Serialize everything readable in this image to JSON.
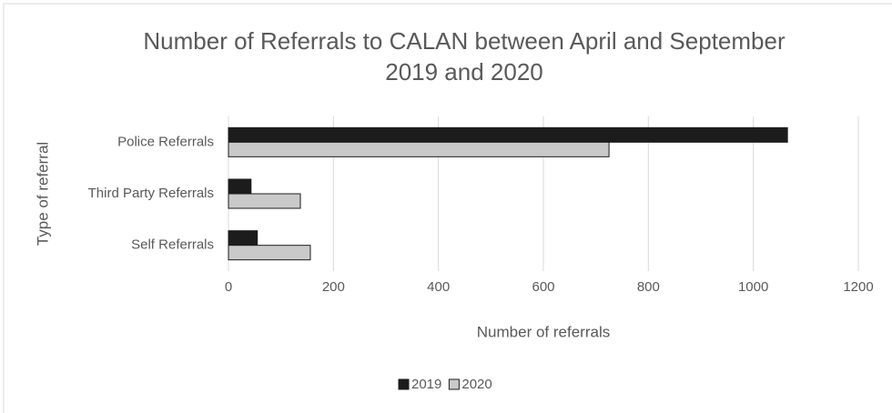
{
  "chart_data": {
    "type": "hbar",
    "title": "Number of Referrals to CALAN between April and September 2019 and 2020",
    "xlabel": "Number of referrals",
    "ylabel": "Type of referral",
    "categories": [
      "Police Referrals",
      "Third Party Referrals",
      "Self Referrals"
    ],
    "series": [
      {
        "name": "2019",
        "color": "#1c1c1c",
        "values": [
          1065,
          43,
          55
        ]
      },
      {
        "name": "2020",
        "color": "#c9c9c9",
        "values": [
          725,
          137,
          156
        ]
      }
    ],
    "xlim": [
      0,
      1200
    ],
    "xticks": [
      0,
      200,
      400,
      600,
      800,
      1000,
      1200
    ],
    "grid": true,
    "legend": "bottom"
  }
}
